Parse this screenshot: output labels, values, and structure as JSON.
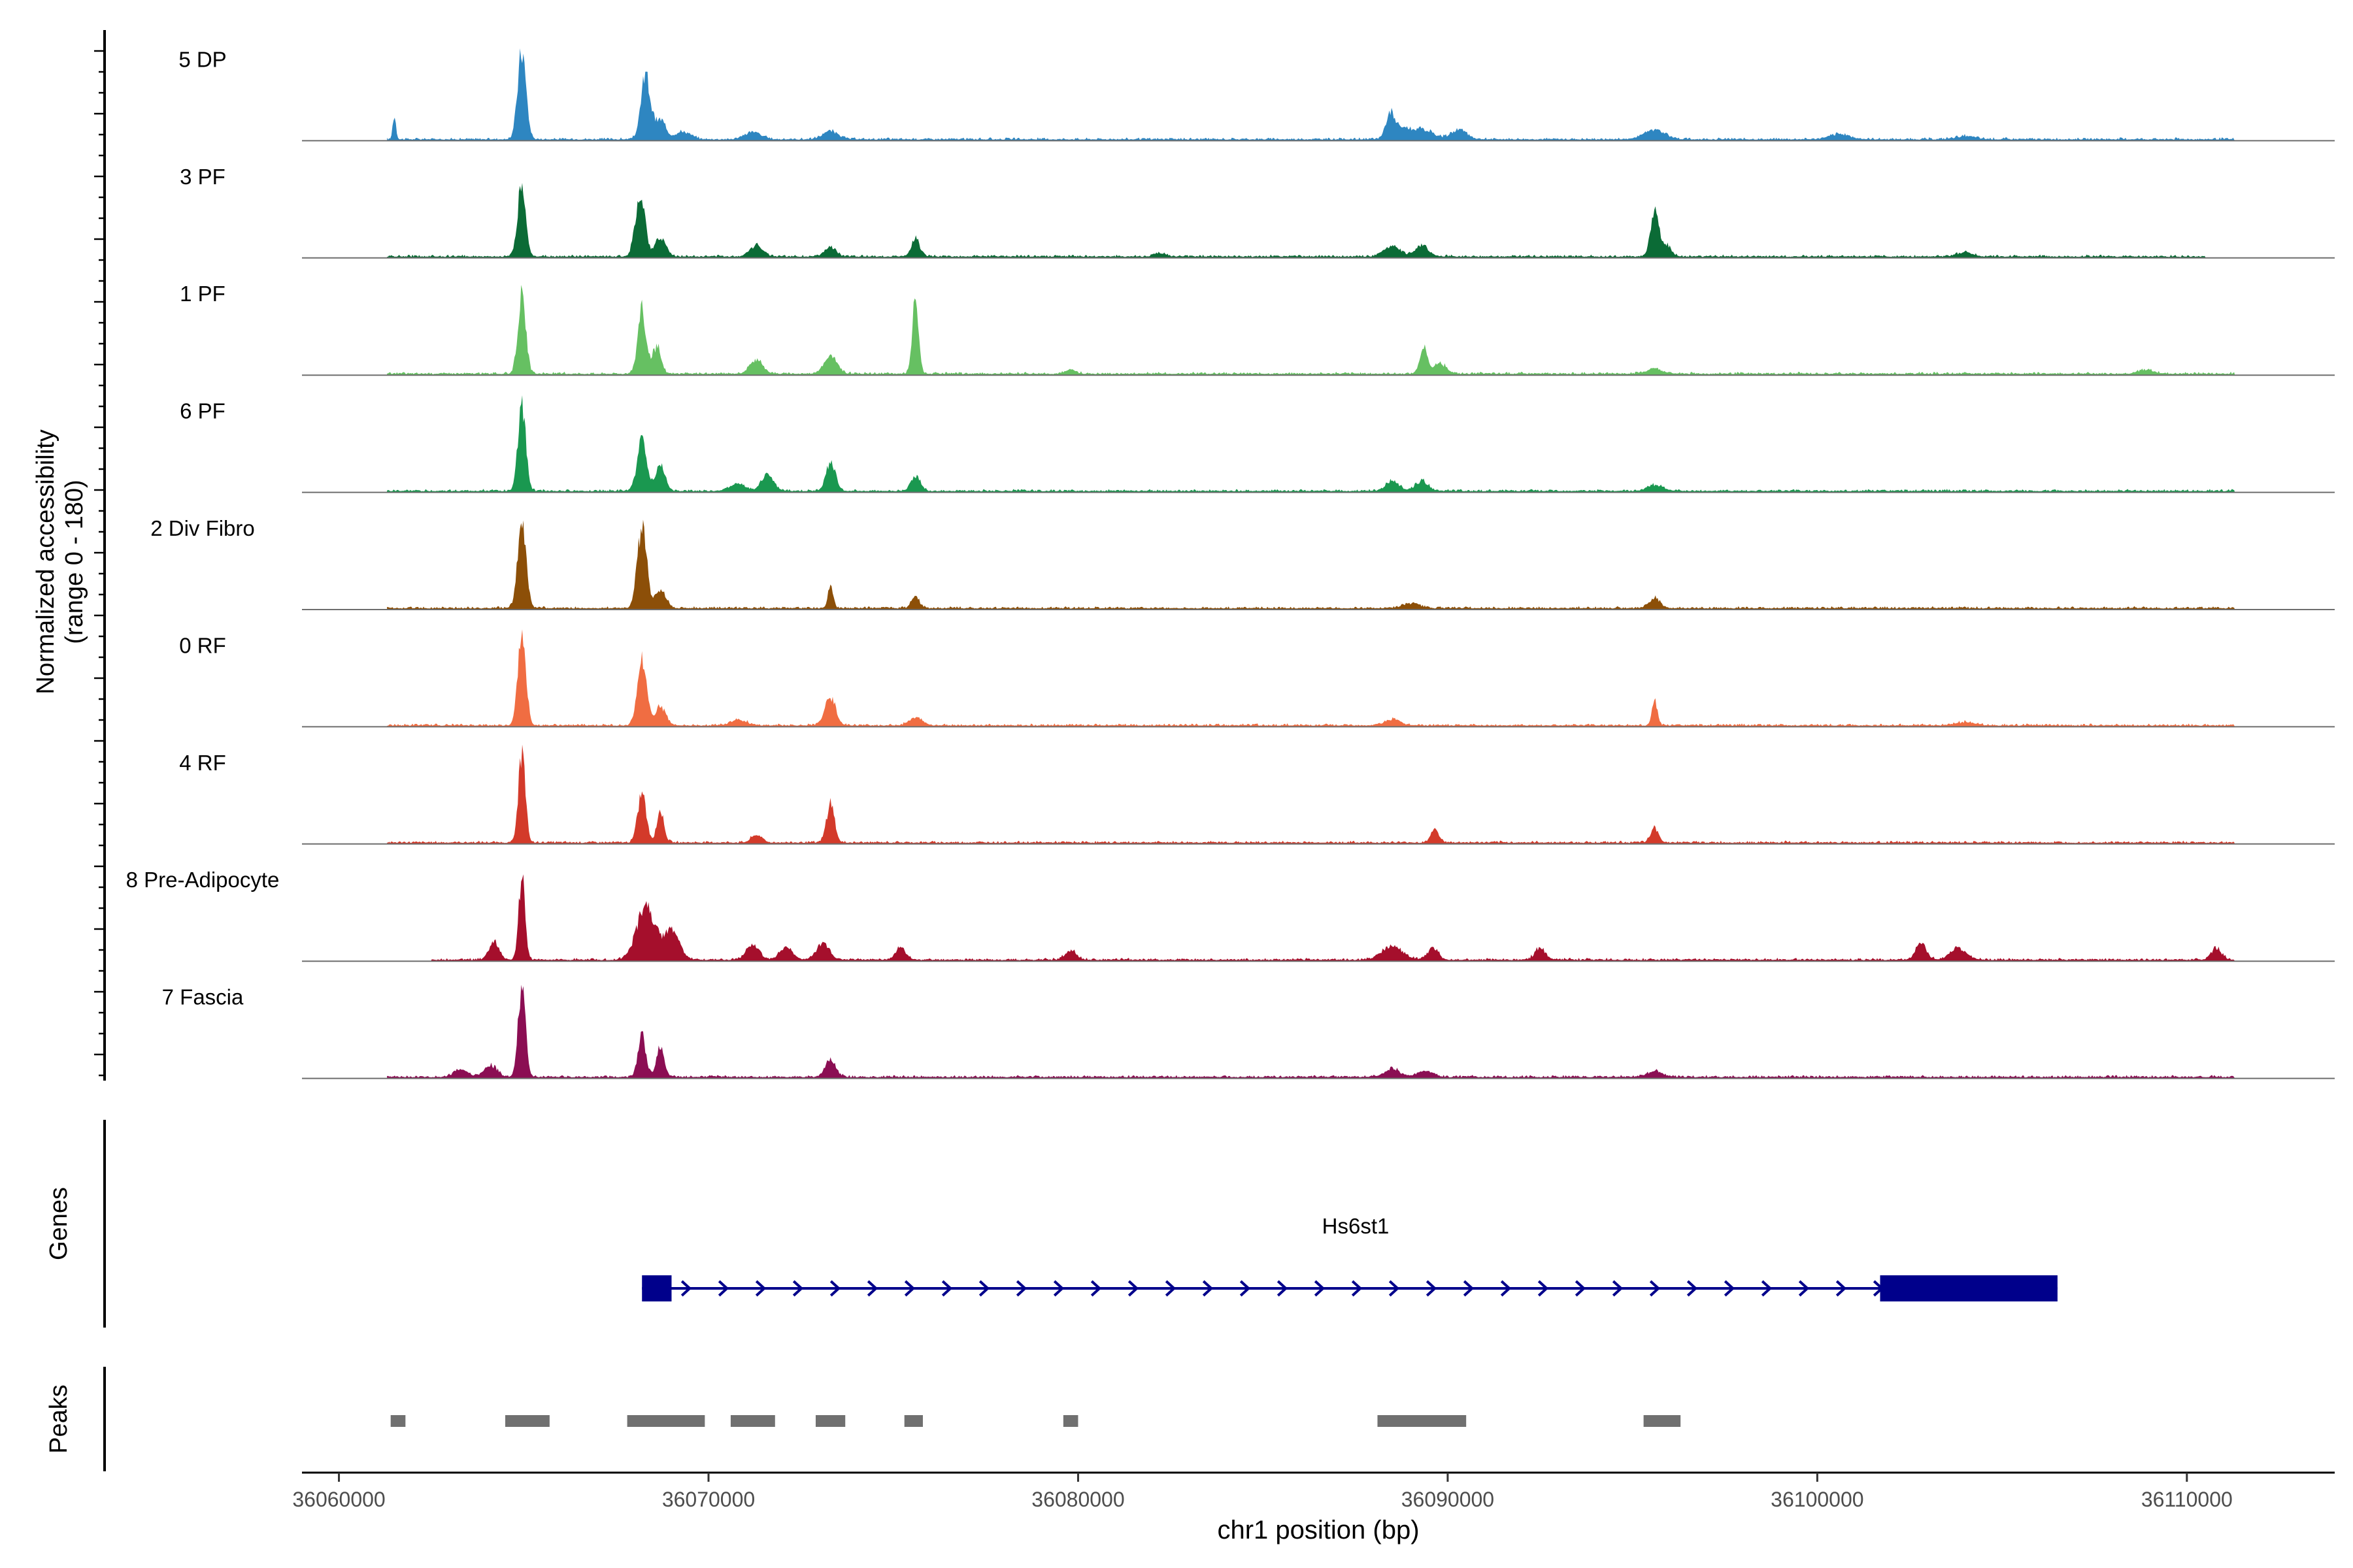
{
  "chart_data": {
    "type": "area",
    "title": "",
    "y_axis_label_line1": "Normalized accessibility",
    "y_axis_label_line2": "(range 0 - 180)",
    "y_range": [
      0,
      180
    ],
    "xlabel": "chr1 position (bp)",
    "xlim": [
      36059000,
      36114000
    ],
    "x_ticks": [
      36060000,
      36070000,
      36080000,
      36090000,
      36100000,
      36110000
    ],
    "x_tick_labels": [
      "36060000",
      "36070000",
      "36080000",
      "36090000",
      "36100000",
      "36110000"
    ],
    "tracks": [
      {
        "name": "5 DP",
        "color": "#2e86c1",
        "start": 36061300,
        "end": 36111300,
        "peaks": [
          [
            36061500,
            0.25,
            60
          ],
          [
            36064950,
            0.92,
            160
          ],
          [
            36068300,
            0.66,
            180
          ],
          [
            36068700,
            0.2,
            200
          ],
          [
            36069300,
            0.08,
            300
          ],
          [
            36071200,
            0.08,
            300
          ],
          [
            36073300,
            0.08,
            300
          ],
          [
            36088450,
            0.27,
            180
          ],
          [
            36088800,
            0.1,
            250
          ],
          [
            36089300,
            0.1,
            400
          ],
          [
            36090300,
            0.1,
            300
          ],
          [
            36095600,
            0.1,
            400
          ],
          [
            36100600,
            0.05,
            400
          ],
          [
            36104000,
            0.03,
            400
          ]
        ]
      },
      {
        "name": "3 PF",
        "color": "#0b6b36",
        "start": 36061300,
        "end": 36110500,
        "peaks": [
          [
            36064950,
            0.8,
            150
          ],
          [
            36068150,
            0.68,
            180
          ],
          [
            36068700,
            0.2,
            200
          ],
          [
            36071300,
            0.12,
            250
          ],
          [
            36073300,
            0.1,
            200
          ],
          [
            36075600,
            0.2,
            150
          ],
          [
            36082200,
            0.04,
            200
          ],
          [
            36088500,
            0.11,
            300
          ],
          [
            36089300,
            0.12,
            250
          ],
          [
            36095600,
            0.45,
            150
          ],
          [
            36095900,
            0.12,
            200
          ],
          [
            36104000,
            0.04,
            300
          ]
        ]
      },
      {
        "name": "1 PF",
        "color": "#66c062",
        "start": 36061300,
        "end": 36111300,
        "peaks": [
          [
            36064950,
            0.83,
            150
          ],
          [
            36068200,
            0.66,
            160
          ],
          [
            36068600,
            0.28,
            160
          ],
          [
            36071300,
            0.14,
            250
          ],
          [
            36073300,
            0.18,
            250
          ],
          [
            36075600,
            0.78,
            120
          ],
          [
            36079800,
            0.04,
            200
          ],
          [
            36089350,
            0.27,
            150
          ],
          [
            36089800,
            0.1,
            250
          ],
          [
            36095600,
            0.05,
            300
          ],
          [
            36108900,
            0.04,
            300
          ]
        ]
      },
      {
        "name": "6 PF",
        "color": "#1a9850",
        "start": 36061300,
        "end": 36111300,
        "peaks": [
          [
            36064950,
            0.88,
            150
          ],
          [
            36068200,
            0.55,
            180
          ],
          [
            36068700,
            0.26,
            180
          ],
          [
            36070800,
            0.08,
            300
          ],
          [
            36071600,
            0.18,
            220
          ],
          [
            36073300,
            0.3,
            180
          ],
          [
            36075600,
            0.16,
            180
          ],
          [
            36088500,
            0.1,
            250
          ],
          [
            36089300,
            0.1,
            250
          ],
          [
            36095600,
            0.06,
            300
          ]
        ]
      },
      {
        "name": "2 Div Fibro",
        "color": "#8c4f08",
        "start": 36061300,
        "end": 36111300,
        "peaks": [
          [
            36064950,
            0.92,
            160
          ],
          [
            36068200,
            0.82,
            180
          ],
          [
            36068700,
            0.2,
            200
          ],
          [
            36073300,
            0.22,
            100
          ],
          [
            36075600,
            0.12,
            150
          ],
          [
            36089000,
            0.05,
            300
          ],
          [
            36095600,
            0.11,
            200
          ]
        ]
      },
      {
        "name": "0 RF",
        "color": "#f06d42",
        "start": 36061300,
        "end": 36111300,
        "peaks": [
          [
            36064950,
            1.0,
            150
          ],
          [
            36068200,
            0.68,
            170
          ],
          [
            36068700,
            0.2,
            200
          ],
          [
            36070800,
            0.06,
            300
          ],
          [
            36073300,
            0.3,
            200
          ],
          [
            36075600,
            0.08,
            250
          ],
          [
            36088500,
            0.06,
            300
          ],
          [
            36095600,
            0.26,
            100
          ],
          [
            36104000,
            0.03,
            400
          ]
        ]
      },
      {
        "name": "4 RF",
        "color": "#d33a2a",
        "start": 36061300,
        "end": 36111300,
        "peaks": [
          [
            36064950,
            0.95,
            130
          ],
          [
            36068200,
            0.52,
            160
          ],
          [
            36068700,
            0.33,
            140
          ],
          [
            36071300,
            0.08,
            200
          ],
          [
            36073300,
            0.42,
            150
          ],
          [
            36089650,
            0.15,
            150
          ],
          [
            36095600,
            0.15,
            150
          ]
        ]
      },
      {
        "name": "8 Pre-Adipocyte",
        "color": "#a50f2c",
        "start": 36062500,
        "end": 36111300,
        "peaks": [
          [
            36064950,
            0.87,
            120
          ],
          [
            36064200,
            0.18,
            200
          ],
          [
            36068300,
            0.55,
            350
          ],
          [
            36069000,
            0.3,
            300
          ],
          [
            36071200,
            0.15,
            250
          ],
          [
            36072100,
            0.12,
            250
          ],
          [
            36073100,
            0.17,
            250
          ],
          [
            36075200,
            0.12,
            200
          ],
          [
            36079800,
            0.1,
            200
          ],
          [
            36088500,
            0.14,
            400
          ],
          [
            36089600,
            0.12,
            200
          ],
          [
            36092500,
            0.12,
            200
          ],
          [
            36102800,
            0.18,
            200
          ],
          [
            36103800,
            0.12,
            300
          ],
          [
            36110800,
            0.12,
            200
          ]
        ]
      },
      {
        "name": "7 Fascia",
        "color": "#8b0e53",
        "start": 36061300,
        "end": 36111300,
        "peaks": [
          [
            36064950,
            0.95,
            140
          ],
          [
            36064100,
            0.12,
            250
          ],
          [
            36063300,
            0.08,
            250
          ],
          [
            36068200,
            0.42,
            150
          ],
          [
            36068700,
            0.3,
            150
          ],
          [
            36073300,
            0.18,
            200
          ],
          [
            36088500,
            0.08,
            300
          ],
          [
            36089400,
            0.06,
            300
          ],
          [
            36095600,
            0.06,
            300
          ]
        ]
      }
    ],
    "genes_label": "Genes",
    "gene": {
      "name": "Hs6st1",
      "start": 36068200,
      "end": 36106500,
      "strand": "+",
      "color": "#00008b",
      "exons": [
        [
          36068200,
          36069000
        ],
        [
          36101700,
          36106500
        ]
      ]
    },
    "peaks_label": "Peaks",
    "peaks_color": "#707070",
    "peak_regions": [
      [
        36061400,
        36061800
      ],
      [
        36064500,
        36065700
      ],
      [
        36067800,
        36069900
      ],
      [
        36070600,
        36071800
      ],
      [
        36072900,
        36073700
      ],
      [
        36075300,
        36075800
      ],
      [
        36079600,
        36080000
      ],
      [
        36088100,
        36090500
      ],
      [
        36095300,
        36096300
      ]
    ]
  }
}
